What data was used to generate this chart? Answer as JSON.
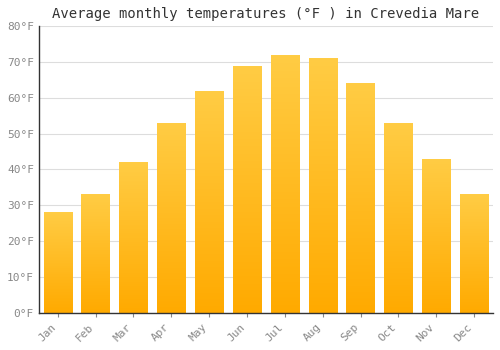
{
  "title": "Average monthly temperatures (°F ) in Crevedia Mare",
  "months": [
    "Jan",
    "Feb",
    "Mar",
    "Apr",
    "May",
    "Jun",
    "Jul",
    "Aug",
    "Sep",
    "Oct",
    "Nov",
    "Dec"
  ],
  "values": [
    28,
    33,
    42,
    53,
    62,
    69,
    72,
    71,
    64,
    53,
    43,
    33
  ],
  "bar_color_top": "#FFCC44",
  "bar_color_bottom": "#FFAA00",
  "background_color": "#FFFFFF",
  "grid_color": "#DDDDDD",
  "ylim": [
    0,
    80
  ],
  "yticks": [
    0,
    10,
    20,
    30,
    40,
    50,
    60,
    70,
    80
  ],
  "ytick_labels": [
    "0°F",
    "10°F",
    "20°F",
    "30°F",
    "40°F",
    "50°F",
    "60°F",
    "70°F",
    "80°F"
  ],
  "title_fontsize": 10,
  "tick_fontsize": 8,
  "tick_color": "#888888"
}
